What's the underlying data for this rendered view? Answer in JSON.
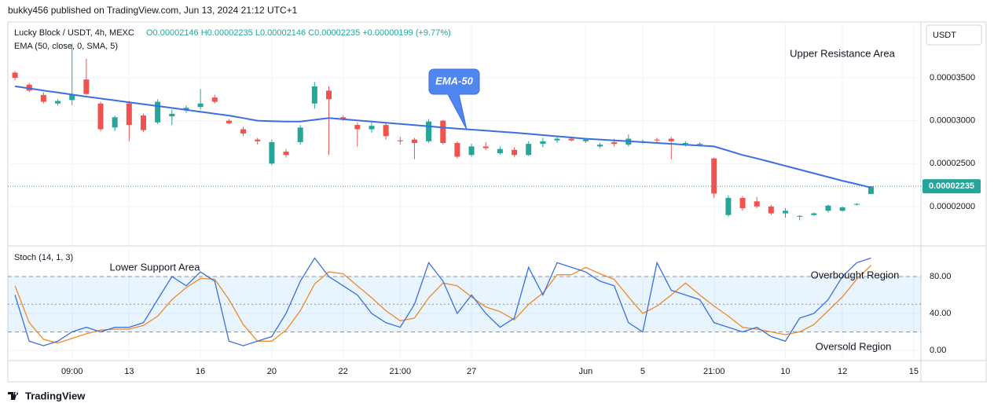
{
  "header": "bukky456 published on TradingView.com, Jun 13, 2024 21:12 UTC+1",
  "footer": "TradingView",
  "chart_data": [
    {
      "type": "candlestick",
      "legend": "Lucky Block / USDT, 4h, MEXC",
      "ohlc_legend": "O0.00002146 H0.00002235 L0.00002146 C0.00002235 +0.00000199 (+9.77%)",
      "indicator_label": "EMA (50, close, 0, SMA, 5)",
      "currency": "USDT",
      "last_price_label": "0.00002235",
      "callout": "EMA-50",
      "annotations": [
        "Upper Resistance Area"
      ],
      "categories": [
        null,
        null,
        null,
        null,
        "09:00",
        null,
        null,
        null,
        "13",
        null,
        null,
        null,
        null,
        "16",
        null,
        null,
        null,
        null,
        "20",
        null,
        null,
        null,
        null,
        "22",
        null,
        null,
        null,
        "21:00",
        null,
        null,
        null,
        null,
        "27",
        null,
        null,
        null,
        null,
        null,
        null,
        null,
        "Jun",
        null,
        null,
        null,
        "5",
        null,
        null,
        null,
        null,
        "21:00",
        null,
        null,
        null,
        null,
        "10",
        null,
        null,
        null,
        "12",
        null,
        null,
        null,
        null,
        "15"
      ],
      "open": [
        3.56e-05,
        3.42e-05,
        3.3e-05,
        3.2e-05,
        3.24e-05,
        3.48e-05,
        3.2e-05,
        2.92e-05,
        3.2e-05,
        3.06e-05,
        2.98e-05,
        3.05e-05,
        3.12e-05,
        3.16e-05,
        3.27e-05,
        3e-05,
        2.9e-05,
        2.78e-05,
        2.5e-05,
        2.64e-05,
        2.75e-05,
        3.2e-05,
        3.35e-05,
        3.04e-05,
        2.95e-05,
        2.9e-05,
        2.95e-05,
        2.77e-05,
        2.78e-05,
        2.76e-05,
        3e-05,
        2.74e-05,
        2.6e-05,
        2.7e-05,
        2.62e-05,
        2.66e-05,
        2.6e-05,
        2.73e-05,
        2.77e-05,
        2.79e-05,
        2.76e-05,
        2.7e-05,
        2.75e-05,
        2.72e-05,
        2.76e-05,
        2.78e-05,
        2.79e-05,
        2.73e-05,
        2.72e-05,
        2.56e-05,
        1.9e-05,
        2.1e-05,
        2.06e-05,
        2e-05,
        1.92e-05,
        1.88e-05,
        1.9e-05,
        1.95e-05,
        1.95e-05,
        2.02e-05,
        2.146e-05,
        null,
        null,
        null
      ],
      "high": [
        3.58e-05,
        3.44e-05,
        3.33e-05,
        3.25e-05,
        3.9e-05,
        3.72e-05,
        3.22e-05,
        3.06e-05,
        3.23e-05,
        3.08e-05,
        3.25e-05,
        3.13e-05,
        3.18e-05,
        3.37e-05,
        3.3e-05,
        3.02e-05,
        2.93e-05,
        2.8e-05,
        2.78e-05,
        2.67e-05,
        2.95e-05,
        3.45e-05,
        3.4e-05,
        3.06e-05,
        2.98e-05,
        2.98e-05,
        2.97e-05,
        2.81e-05,
        2.8e-05,
        3.02e-05,
        3.01e-05,
        2.76e-05,
        2.73e-05,
        2.75e-05,
        2.7e-05,
        2.69e-05,
        2.76e-05,
        2.8e-05,
        2.81e-05,
        2.81e-05,
        2.79e-05,
        2.74e-05,
        2.79e-05,
        2.84e-05,
        2.78e-05,
        2.8e-05,
        2.81e-05,
        2.76e-05,
        2.75e-05,
        2.57e-05,
        2.13e-05,
        2.12e-05,
        2.11e-05,
        2.02e-05,
        1.98e-05,
        1.9e-05,
        1.93e-05,
        2.02e-05,
        2e-05,
        2.04e-05,
        2.235e-05,
        null,
        null,
        null
      ],
      "low": [
        3.47e-05,
        3.33e-05,
        3.2e-05,
        3.18e-05,
        3.18e-05,
        3.3e-05,
        2.88e-05,
        2.88e-05,
        2.76e-05,
        2.87e-05,
        2.96e-05,
        2.95e-05,
        3.09e-05,
        3.13e-05,
        3.2e-05,
        2.96e-05,
        2.82e-05,
        2.72e-05,
        2.48e-05,
        2.57e-05,
        2.72e-05,
        3.14e-05,
        2.6e-05,
        3e-05,
        2.7e-05,
        2.86e-05,
        2.78e-05,
        2.72e-05,
        2.55e-05,
        2.74e-05,
        2.72e-05,
        2.56e-05,
        2.58e-05,
        2.66e-05,
        2.6e-05,
        2.58e-05,
        2.59e-05,
        2.69e-05,
        2.74e-05,
        2.76e-05,
        2.74e-05,
        2.68e-05,
        2.7e-05,
        2.7e-05,
        2.73e-05,
        2.74e-05,
        2.55e-05,
        2.7e-05,
        2.7e-05,
        2.1e-05,
        1.88e-05,
        1.95e-05,
        1.98e-05,
        1.9e-05,
        1.87e-05,
        1.84e-05,
        1.89e-05,
        1.93e-05,
        1.94e-05,
        2.01e-05,
        2.146e-05,
        null,
        null,
        null
      ],
      "close": [
        3.5e-05,
        3.35e-05,
        3.22e-05,
        3.23e-05,
        3.3e-05,
        3.31e-05,
        2.9e-05,
        3.04e-05,
        2.95e-05,
        2.89e-05,
        3.22e-05,
        3.08e-05,
        3.15e-05,
        3.2e-05,
        3.22e-05,
        2.97e-05,
        2.85e-05,
        2.76e-05,
        2.75e-05,
        2.6e-05,
        2.92e-05,
        3.4e-05,
        3.25e-05,
        3.02e-05,
        2.9e-05,
        2.94e-05,
        2.82e-05,
        2.76e-05,
        2.74e-05,
        2.99e-05,
        2.74e-05,
        2.58e-05,
        2.7e-05,
        2.68e-05,
        2.67e-05,
        2.6e-05,
        2.73e-05,
        2.76e-05,
        2.79e-05,
        2.77e-05,
        2.78e-05,
        2.72e-05,
        2.73e-05,
        2.79e-05,
        2.76e-05,
        2.77e-05,
        2.76e-05,
        2.74e-05,
        2.73e-05,
        2.15e-05,
        2.1e-05,
        1.98e-05,
        2e-05,
        1.92e-05,
        1.95e-05,
        1.89e-05,
        1.92e-05,
        2.01e-05,
        1.99e-05,
        2.03e-05,
        2.235e-05,
        null,
        null,
        null
      ],
      "up_color": "#26a69a",
      "down_color": "#ef5350",
      "series": [
        {
          "name": "EMA-50",
          "color": "#3b6fe0",
          "values": [
            3.4e-05,
            3.376e-05,
            3.352e-05,
            3.328e-05,
            3.304e-05,
            3.28e-05,
            3.258e-05,
            3.236e-05,
            3.214e-05,
            3.192e-05,
            3.17e-05,
            3.148e-05,
            3.126e-05,
            3.104e-05,
            3.082e-05,
            3.06e-05,
            3.03e-05,
            3e-05,
            2.995e-05,
            2.99e-05,
            2.99e-05,
            3.01e-05,
            3.03e-05,
            3.017e-05,
            3.003e-05,
            2.99e-05,
            2.976e-05,
            2.962e-05,
            2.948e-05,
            2.934e-05,
            2.92e-05,
            2.908e-05,
            2.896e-05,
            2.884e-05,
            2.872e-05,
            2.86e-05,
            2.846e-05,
            2.832e-05,
            2.818e-05,
            2.804e-05,
            2.79e-05,
            2.78e-05,
            2.77e-05,
            2.76e-05,
            2.75e-05,
            2.74e-05,
            2.73e-05,
            2.72e-05,
            2.71e-05,
            2.7e-05,
            2.65e-05,
            2.6e-05,
            2.56e-05,
            2.517e-05,
            2.473e-05,
            2.43e-05,
            2.387e-05,
            2.343e-05,
            2.3e-05,
            2.26e-05,
            2.22e-05,
            null,
            null,
            null
          ]
        }
      ],
      "ylim": [
        1.55e-05,
        4.15e-05
      ],
      "yticks": [
        {
          "value": 3.5e-05,
          "label": "0.00003500"
        },
        {
          "value": 3e-05,
          "label": "0.00003000"
        },
        {
          "value": 2.5e-05,
          "label": "0.00002500"
        },
        {
          "value": 2e-05,
          "label": "0.00002000"
        }
      ],
      "grid": true
    },
    {
      "type": "line",
      "title": "Stoch (14, 1, 3)",
      "annotations": [
        "Lower Support Area",
        "Overbought Region",
        "Oversold Region"
      ],
      "series": [
        {
          "name": "%K",
          "color": "#3b6fe0",
          "values": [
            60,
            10,
            5,
            10,
            20,
            25,
            20,
            25,
            25,
            30,
            55,
            80,
            70,
            85,
            75,
            10,
            5,
            10,
            15,
            40,
            75,
            100,
            80,
            70,
            60,
            40,
            30,
            25,
            50,
            95,
            75,
            40,
            60,
            40,
            25,
            35,
            90,
            60,
            95,
            90,
            85,
            75,
            70,
            30,
            20,
            95,
            65,
            60,
            55,
            30,
            25,
            20,
            25,
            15,
            10,
            35,
            40,
            55,
            80,
            95,
            100,
            null,
            null,
            null
          ]
        },
        {
          "name": "%D",
          "color": "#f08a24",
          "values": [
            70,
            30,
            12,
            8,
            13,
            18,
            22,
            23,
            23,
            27,
            37,
            55,
            68,
            78,
            77,
            55,
            28,
            10,
            10,
            22,
            43,
            72,
            85,
            83,
            70,
            57,
            43,
            32,
            35,
            57,
            73,
            70,
            58,
            47,
            42,
            33,
            50,
            62,
            82,
            82,
            90,
            83,
            77,
            58,
            40,
            48,
            60,
            73,
            60,
            48,
            37,
            25,
            23,
            20,
            17,
            20,
            28,
            43,
            58,
            77,
            92,
            null,
            null,
            null
          ]
        }
      ],
      "band_levels": [
        20,
        50,
        80
      ],
      "band_color": "#2196f3",
      "ylim": [
        -10.2,
        113.2
      ],
      "yticks": [
        {
          "value": 80,
          "label": "80.00"
        },
        {
          "value": 40,
          "label": "40.00"
        },
        {
          "value": 0,
          "label": "0.00"
        }
      ],
      "grid": true
    }
  ]
}
